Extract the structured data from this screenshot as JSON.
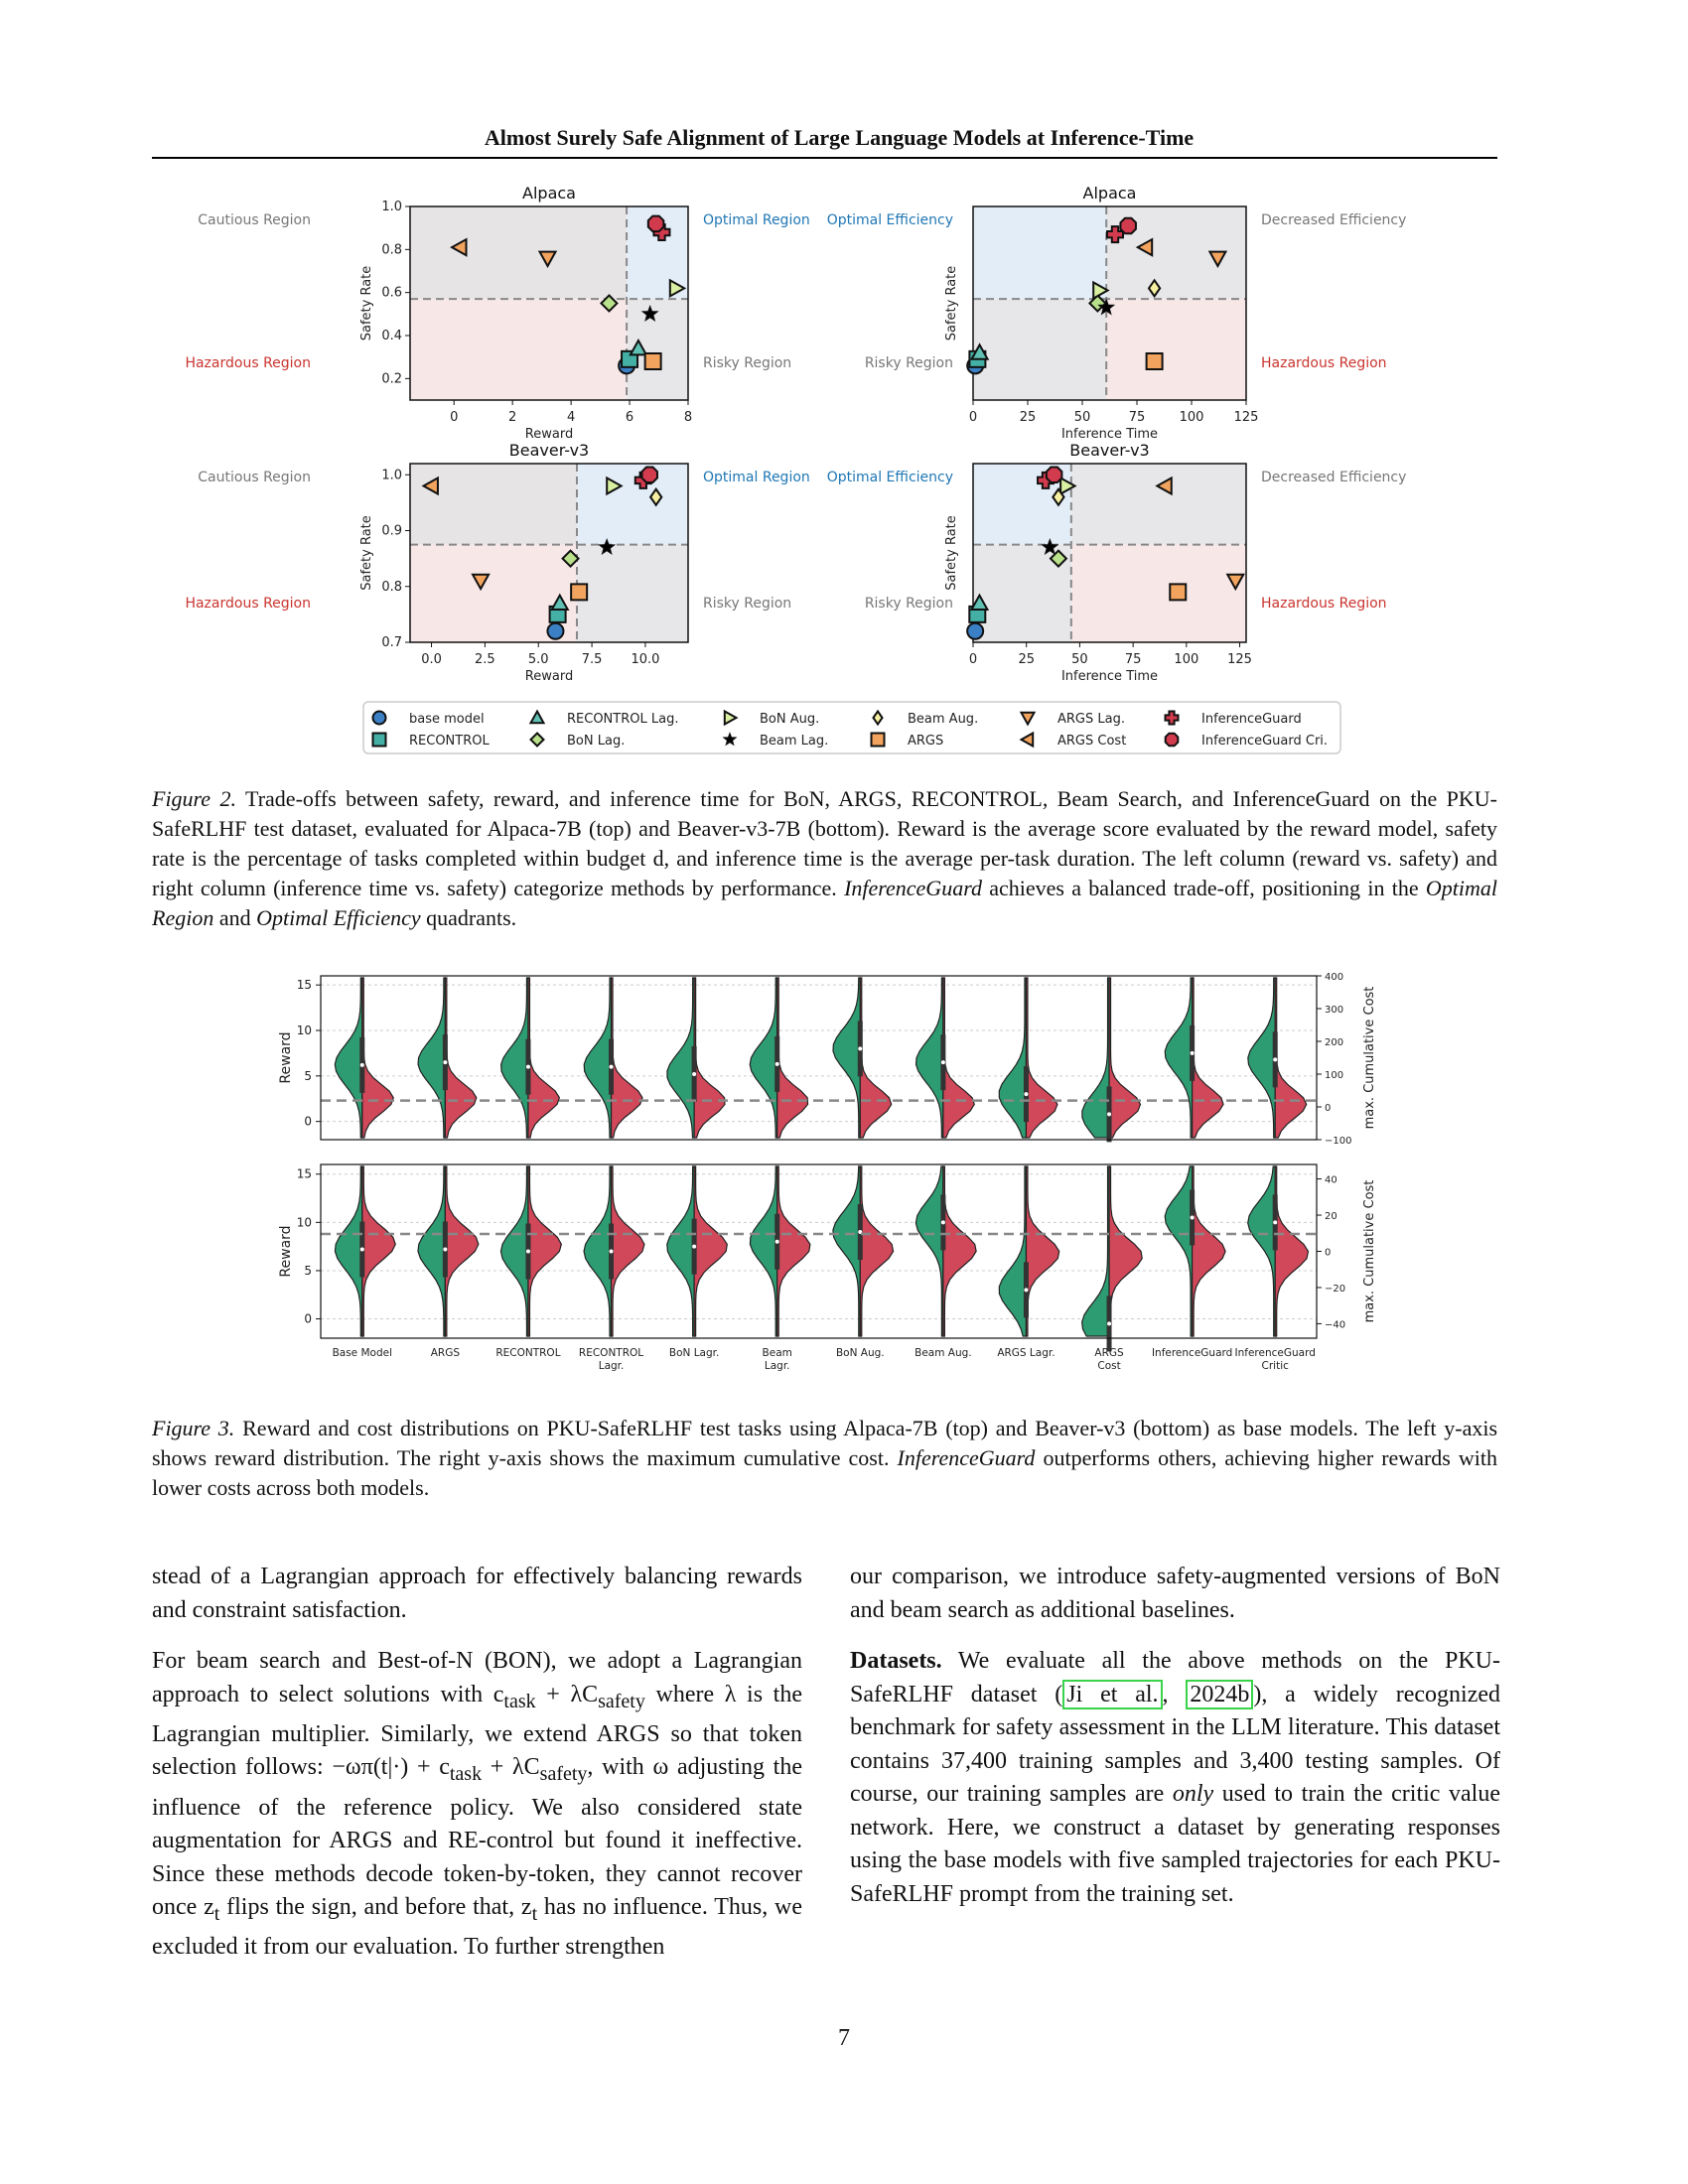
{
  "header": {
    "running_title": "Almost Surely Safe Alignment of Large Language Models at Inference-Time"
  },
  "figure2": {
    "caption_label": "Figure 2.",
    "caption_text": "Trade-offs between safety, reward, and inference time for BoN, ARGS, RECONTROL, Beam Search, and InferenceGuard on the PKU-SafeRLHF test dataset, evaluated for Alpaca-7B (top) and Beaver-v3-7B (bottom). Reward is the average score evaluated by the reward model, safety rate is the percentage of tasks completed within budget d, and inference time is the average per-task duration. The left column (reward vs. safety) and right column (inference time vs. safety) categorize methods by performance.",
    "caption_em1": "InferenceGuard",
    "caption_mid": "achieves a balanced trade-off, positioning in the",
    "caption_em2": "Optimal Region",
    "caption_and": "and",
    "caption_em3": "Optimal Efficiency",
    "caption_end": "quadrants.",
    "region_labels": {
      "cautious": "Cautious Region",
      "optimal": "Optimal Region",
      "hazardous": "Hazardous Region",
      "risky": "Risky Region",
      "optimal_eff": "Optimal Efficiency",
      "decreased_eff": "Decreased Efficiency"
    },
    "legend": [
      {
        "name": "base model",
        "marker": "circle",
        "color": "#3b7fc4"
      },
      {
        "name": "RECONTROL",
        "marker": "square",
        "color": "#44b0a5"
      },
      {
        "name": "RECONTROL Lag.",
        "marker": "triangle-up",
        "color": "#5fc0b3"
      },
      {
        "name": "BoN Lag.",
        "marker": "diamond",
        "color": "#b9e08a"
      },
      {
        "name": "BoN Aug.",
        "marker": "triangle-right",
        "color": "#d9f0a3"
      },
      {
        "name": "Beam Lag.",
        "marker": "star",
        "color": "#000000"
      },
      {
        "name": "Beam Aug.",
        "marker": "thin-diamond",
        "color": "#f6f0a0"
      },
      {
        "name": "ARGS",
        "marker": "square",
        "color": "#f2a35e"
      },
      {
        "name": "ARGS Lag.",
        "marker": "triangle-down",
        "color": "#f2a35e"
      },
      {
        "name": "ARGS Cost",
        "marker": "triangle-left",
        "color": "#f2a35e"
      },
      {
        "name": "InferenceGuard",
        "marker": "plus",
        "color": "#d23a4e"
      },
      {
        "name": "InferenceGuard Cri.",
        "marker": "octagon",
        "color": "#d23a4e"
      }
    ],
    "panels": [
      {
        "title": "Alpaca",
        "xlabel": "Reward",
        "ylabel": "Safety Rate",
        "xlim": [
          -1.5,
          8
        ],
        "ylim": [
          0.1,
          1.0
        ],
        "xticks": [
          0,
          2,
          4,
          6,
          8
        ],
        "yticks": [
          0.2,
          0.4,
          0.6,
          0.8,
          1.0
        ],
        "vline": 5.9,
        "hline": 0.57,
        "quadrant": "reward",
        "points": [
          {
            "name": "base model",
            "x": 5.9,
            "y": 0.26
          },
          {
            "name": "RECONTROL",
            "x": 6.0,
            "y": 0.29
          },
          {
            "name": "RECONTROL Lag.",
            "x": 6.3,
            "y": 0.34
          },
          {
            "name": "BoN Lag.",
            "x": 5.3,
            "y": 0.55
          },
          {
            "name": "BoN Aug.",
            "x": 7.6,
            "y": 0.62
          },
          {
            "name": "Beam Lag.",
            "x": 6.7,
            "y": 0.5
          },
          {
            "name": "ARGS",
            "x": 6.8,
            "y": 0.28
          },
          {
            "name": "ARGS Lag.",
            "x": 3.2,
            "y": 0.76
          },
          {
            "name": "ARGS Cost",
            "x": 0.2,
            "y": 0.81
          },
          {
            "name": "InferenceGuard",
            "x": 7.1,
            "y": 0.88
          },
          {
            "name": "InferenceGuard Cri.",
            "x": 6.9,
            "y": 0.92
          }
        ]
      },
      {
        "title": "Alpaca",
        "xlabel": "Inference Time",
        "ylabel": "Safety Rate",
        "xlim": [
          0,
          125
        ],
        "ylim": [
          0.1,
          1.0
        ],
        "xticks": [
          0,
          25,
          50,
          75,
          100,
          125
        ],
        "yticks": [],
        "vline": 61,
        "hline": 0.57,
        "quadrant": "time",
        "points": [
          {
            "name": "base model",
            "x": 1,
            "y": 0.26
          },
          {
            "name": "RECONTROL",
            "x": 2,
            "y": 0.29
          },
          {
            "name": "RECONTROL Lag.",
            "x": 3,
            "y": 0.32
          },
          {
            "name": "BoN Lag.",
            "x": 57,
            "y": 0.55
          },
          {
            "name": "BoN Aug.",
            "x": 58,
            "y": 0.61
          },
          {
            "name": "Beam Lag.",
            "x": 61,
            "y": 0.53
          },
          {
            "name": "Beam Aug.",
            "x": 83,
            "y": 0.62
          },
          {
            "name": "ARGS",
            "x": 83,
            "y": 0.28
          },
          {
            "name": "ARGS Lag.",
            "x": 112,
            "y": 0.76
          },
          {
            "name": "ARGS Cost",
            "x": 79,
            "y": 0.81
          },
          {
            "name": "InferenceGuard",
            "x": 65,
            "y": 0.87
          },
          {
            "name": "InferenceGuard Cri.",
            "x": 71,
            "y": 0.91
          }
        ]
      },
      {
        "title": "Beaver-v3",
        "xlabel": "Reward",
        "ylabel": "Safety Rate",
        "xlim": [
          -1,
          12
        ],
        "ylim": [
          0.7,
          1.02
        ],
        "xticks": [
          0.0,
          2.5,
          5.0,
          7.5,
          10.0
        ],
        "yticks": [
          0.7,
          0.8,
          0.9,
          1.0
        ],
        "vline": 6.8,
        "hline": 0.875,
        "quadrant": "reward",
        "points": [
          {
            "name": "base model",
            "x": 5.8,
            "y": 0.72
          },
          {
            "name": "RECONTROL",
            "x": 5.9,
            "y": 0.75
          },
          {
            "name": "RECONTROL Lag.",
            "x": 6.0,
            "y": 0.77
          },
          {
            "name": "BoN Lag.",
            "x": 6.5,
            "y": 0.85
          },
          {
            "name": "BoN Aug.",
            "x": 8.5,
            "y": 0.98
          },
          {
            "name": "Beam Lag.",
            "x": 8.2,
            "y": 0.87
          },
          {
            "name": "Beam Aug.",
            "x": 10.5,
            "y": 0.96
          },
          {
            "name": "ARGS",
            "x": 6.9,
            "y": 0.79
          },
          {
            "name": "ARGS Lag.",
            "x": 2.3,
            "y": 0.81
          },
          {
            "name": "ARGS Cost",
            "x": 0.0,
            "y": 0.98
          },
          {
            "name": "InferenceGuard",
            "x": 9.9,
            "y": 0.99
          },
          {
            "name": "InferenceGuard Cri.",
            "x": 10.2,
            "y": 1.0
          }
        ]
      },
      {
        "title": "Beaver-v3",
        "xlabel": "Inference Time",
        "ylabel": "Safety Rate",
        "xlim": [
          0,
          128
        ],
        "ylim": [
          0.7,
          1.02
        ],
        "xticks": [
          0,
          25,
          50,
          75,
          100,
          125
        ],
        "yticks": [],
        "vline": 46,
        "hline": 0.875,
        "quadrant": "time",
        "points": [
          {
            "name": "base model",
            "x": 1,
            "y": 0.72
          },
          {
            "name": "RECONTROL",
            "x": 2,
            "y": 0.75
          },
          {
            "name": "RECONTROL Lag.",
            "x": 3,
            "y": 0.77
          },
          {
            "name": "BoN Lag.",
            "x": 40,
            "y": 0.85
          },
          {
            "name": "BoN Aug.",
            "x": 44,
            "y": 0.98
          },
          {
            "name": "Beam Lag.",
            "x": 36,
            "y": 0.87
          },
          {
            "name": "Beam Aug.",
            "x": 40,
            "y": 0.96
          },
          {
            "name": "ARGS",
            "x": 96,
            "y": 0.79
          },
          {
            "name": "ARGS Lag.",
            "x": 123,
            "y": 0.81
          },
          {
            "name": "ARGS Cost",
            "x": 90,
            "y": 0.98
          },
          {
            "name": "InferenceGuard",
            "x": 34,
            "y": 0.99
          },
          {
            "name": "InferenceGuard Cri.",
            "x": 38,
            "y": 1.0
          }
        ]
      }
    ]
  },
  "figure3": {
    "caption_label": "Figure 3.",
    "caption_text": "Reward and cost distributions on PKU-SafeRLHF test tasks using Alpaca-7B (top) and Beaver-v3 (bottom) as base models. The left y-axis shows reward distribution. The right y-axis shows the maximum cumulative cost.",
    "caption_em": "InferenceGuard",
    "caption_end": "outperforms others, achieving higher rewards with lower costs across both models.",
    "categories": [
      "Base Model",
      "ARGS",
      "RECONTROL",
      "RECONTROL\nLagr.",
      "BoN Lagr.",
      "Beam\nLagr.",
      "BoN Aug.",
      "Beam Aug.",
      "ARGS Lagr.",
      "ARGS\nCost",
      "InferenceGuard",
      "InferenceGuard\nCritic"
    ],
    "ylabel_left": "Reward",
    "ylabel_right": "max. Cumulative Cost",
    "colors": {
      "reward": "#2e9c72",
      "cost": "#d0485a"
    },
    "top": {
      "yticks_left": [
        0,
        5,
        10,
        15
      ],
      "ylim_left": [
        -2,
        16
      ],
      "yticks_right": [
        -100,
        0,
        100,
        200,
        300,
        400
      ],
      "ylim_right": [
        -100,
        400
      ],
      "hline_left": 2.3,
      "reward_median": [
        6.2,
        6.5,
        6.0,
        6.0,
        5.2,
        6.3,
        8.0,
        6.5,
        3.0,
        0.8,
        7.5,
        6.8
      ],
      "cost_median": [
        2.5,
        2.5,
        2.5,
        2.5,
        2.2,
        2.2,
        2.0,
        2.0,
        1.8,
        1.8,
        2.0,
        1.9
      ]
    },
    "bottom": {
      "yticks_left": [
        0,
        5,
        10,
        15
      ],
      "ylim_left": [
        -2,
        16
      ],
      "yticks_right": [
        -40,
        -20,
        0,
        20,
        40
      ],
      "ylim_right": [
        -48,
        48
      ],
      "hline_left": 8.8,
      "reward_median": [
        7.2,
        7.2,
        7.0,
        7.0,
        7.5,
        8.0,
        9.0,
        10.0,
        3.0,
        -0.5,
        10.5,
        10.0
      ],
      "cost_median": [
        7.8,
        7.8,
        7.6,
        7.6,
        7.5,
        7.5,
        7.2,
        7.2,
        6.8,
        6.5,
        7.0,
        6.8
      ]
    }
  },
  "body": {
    "left": {
      "p1": "stead of a Lagrangian approach for effectively balancing rewards and constraint satisfaction.",
      "p2a": "For beam search and Best-of-N (BON), we adopt a Lagrangian approach to select solutions with c",
      "p2_sub_task": "task",
      "p2b": " + λC",
      "p2_sub_safety": "safety",
      "p2c": " where λ is the Lagrangian multiplier. Similarly, we extend ARGS so that token selection follows: −ωπ(t|·) + c",
      "p2d": " + λC",
      "p2e": ", with ω adjusting the influence of the reference policy. We also considered state augmentation for ARGS and RE-control but found it ineffective. Since these methods decode token-by-token, they cannot recover once z",
      "p2_sub_t": "t",
      "p2f": " flips the sign, and before that, z",
      "p2g": " has no influence. Thus, we excluded it from our evaluation. To further strengthen"
    },
    "right": {
      "p1": "our comparison, we introduce safety-augmented versions of BoN and beam search as additional baselines.",
      "p2_head": "Datasets.",
      "p2a": " We evaluate all the above methods on the PKU-SafeRLHF dataset (",
      "cite1": "Ji et al.",
      "cite_sep": ", ",
      "cite2": "2024b",
      "p2b": "), a widely recognized benchmark for safety assessment in the LLM literature. This dataset contains 37,400 training samples and 3,400 testing samples. Of course, our training samples are ",
      "p2_em": "only",
      "p2c": " used to train the critic value network. Here, we construct a dataset by generating responses using the base models with five sampled trajectories for each PKU-SafeRLHF prompt from the training set."
    }
  },
  "page_number": "7"
}
